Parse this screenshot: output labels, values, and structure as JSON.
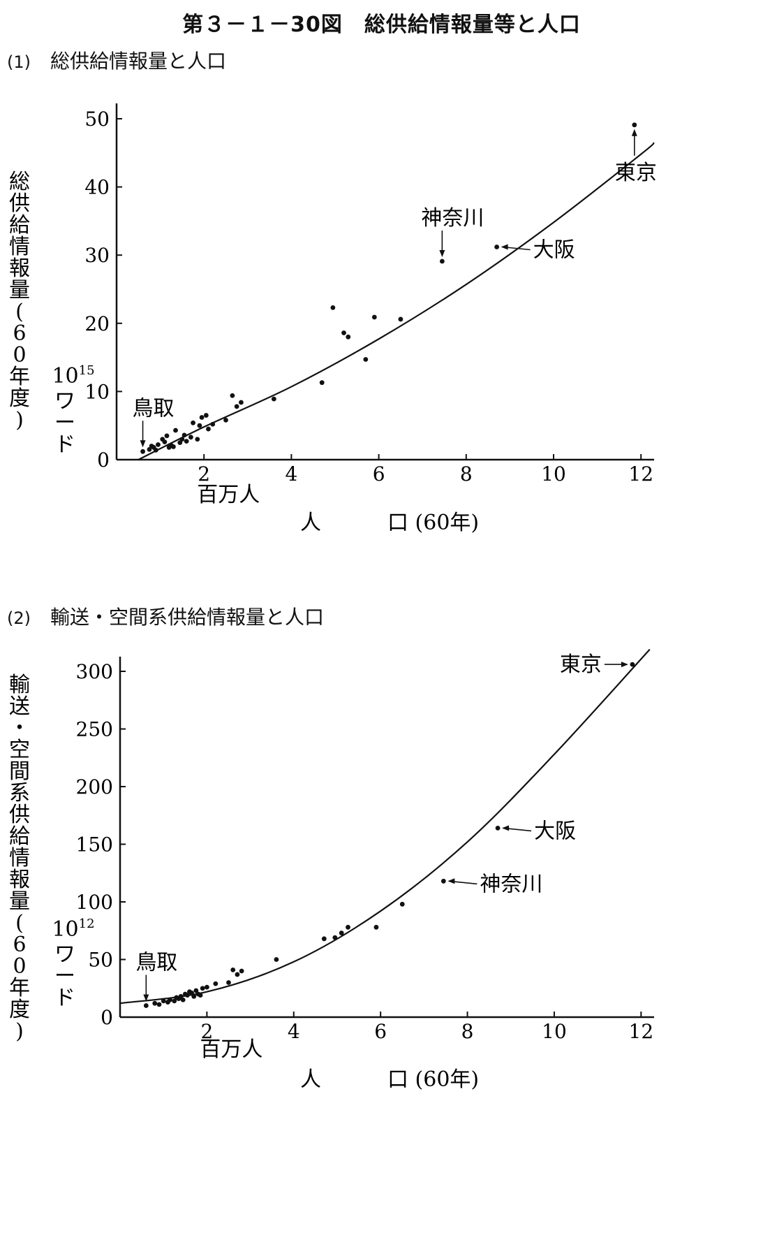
{
  "figure_title": "第３－１－30図　総供給情報量等と人口",
  "chart_data": [
    {
      "type": "scatter",
      "panel_number": "(1)",
      "title": "総供給情報量と人口",
      "ylabel": "総供給情報量(60年度)",
      "yunit_exp": "10",
      "yunit_sup": "15",
      "yunit_word": "ワード",
      "xunit": "百万人",
      "xlabel_a": "人",
      "xlabel_b": "口 (60年)",
      "xlim": [
        0,
        12.3
      ],
      "ylim": [
        0,
        50
      ],
      "xticks": [
        2,
        4,
        6,
        8,
        10,
        12
      ],
      "yticks": [
        0,
        10,
        20,
        30,
        40,
        50
      ],
      "curve": [
        [
          0.5,
          0
        ],
        [
          2,
          4.8
        ],
        [
          4,
          10.7
        ],
        [
          6,
          17.7
        ],
        [
          8,
          25.7
        ],
        [
          10,
          34.8
        ],
        [
          12,
          44.8
        ],
        [
          12.3,
          46.5
        ]
      ],
      "points": [
        [
          0.6,
          1.2
        ],
        [
          0.75,
          1.5
        ],
        [
          0.8,
          2.0
        ],
        [
          0.85,
          1.8
        ],
        [
          0.9,
          1.4
        ],
        [
          0.95,
          2.2
        ],
        [
          1.05,
          3.0
        ],
        [
          1.1,
          2.6
        ],
        [
          1.15,
          3.5
        ],
        [
          1.2,
          1.8
        ],
        [
          1.25,
          2.1
        ],
        [
          1.3,
          1.9
        ],
        [
          1.35,
          4.3
        ],
        [
          1.45,
          2.5
        ],
        [
          1.5,
          3.0
        ],
        [
          1.55,
          3.6
        ],
        [
          1.6,
          2.7
        ],
        [
          1.7,
          3.3
        ],
        [
          1.75,
          5.4
        ],
        [
          1.85,
          3.0
        ],
        [
          1.9,
          5.0
        ],
        [
          1.95,
          6.2
        ],
        [
          2.05,
          6.5
        ],
        [
          2.1,
          4.5
        ],
        [
          2.2,
          5.2
        ],
        [
          2.5,
          5.8
        ],
        [
          2.65,
          9.4
        ],
        [
          2.75,
          7.8
        ],
        [
          2.85,
          8.4
        ],
        [
          3.6,
          8.9
        ],
        [
          4.7,
          11.3
        ],
        [
          4.95,
          22.3
        ],
        [
          5.2,
          18.6
        ],
        [
          5.3,
          18.0
        ],
        [
          5.7,
          14.7
        ],
        [
          5.9,
          20.9
        ],
        [
          6.5,
          20.6
        ],
        [
          7.45,
          29.1
        ],
        [
          8.7,
          31.2
        ],
        [
          11.85,
          49.1
        ]
      ],
      "labels": [
        {
          "text": "鳥取",
          "x": 0.6,
          "y": 1.2,
          "dir": "above"
        },
        {
          "text": "神奈川",
          "x": 7.45,
          "y": 29.1,
          "dir": "above"
        },
        {
          "text": "大阪",
          "x": 8.7,
          "y": 31.2,
          "dir": "right"
        },
        {
          "text": "東京",
          "x": 11.85,
          "y": 49.1,
          "dir": "below"
        }
      ]
    },
    {
      "type": "scatter",
      "panel_number": "(2)",
      "title": "輸送・空間系供給情報量と人口",
      "ylabel": "輸送・空間系供給情報量(60年度)",
      "yunit_exp": "10",
      "yunit_sup": "12",
      "yunit_word": "ワード",
      "xunit": "百万人",
      "xlabel_a": "人",
      "xlabel_b": "口 (60年)",
      "xlim": [
        0,
        12.3
      ],
      "ylim": [
        0,
        320
      ],
      "xticks": [
        2,
        4,
        6,
        8,
        10,
        12
      ],
      "yticks": [
        0,
        50,
        100,
        150,
        200,
        250,
        300
      ],
      "curve": [
        [
          0,
          12
        ],
        [
          2,
          22
        ],
        [
          4,
          48
        ],
        [
          6,
          92
        ],
        [
          8,
          152
        ],
        [
          10,
          228
        ],
        [
          12.2,
          319
        ]
      ],
      "points": [
        [
          0.6,
          10
        ],
        [
          0.8,
          12
        ],
        [
          0.9,
          11
        ],
        [
          1.0,
          14
        ],
        [
          1.1,
          13
        ],
        [
          1.15,
          15
        ],
        [
          1.25,
          14
        ],
        [
          1.3,
          17
        ],
        [
          1.35,
          16
        ],
        [
          1.4,
          18
        ],
        [
          1.45,
          15
        ],
        [
          1.5,
          20
        ],
        [
          1.55,
          19
        ],
        [
          1.6,
          22
        ],
        [
          1.65,
          21
        ],
        [
          1.7,
          18
        ],
        [
          1.75,
          23
        ],
        [
          1.8,
          20
        ],
        [
          1.85,
          19
        ],
        [
          1.9,
          25
        ],
        [
          2.0,
          26
        ],
        [
          2.2,
          29
        ],
        [
          2.5,
          30
        ],
        [
          2.6,
          41
        ],
        [
          2.7,
          37
        ],
        [
          2.8,
          40
        ],
        [
          3.6,
          50
        ],
        [
          4.7,
          68
        ],
        [
          4.95,
          69
        ],
        [
          5.1,
          73
        ],
        [
          5.25,
          78
        ],
        [
          5.9,
          78
        ],
        [
          6.5,
          98
        ],
        [
          7.45,
          118
        ],
        [
          8.7,
          164
        ],
        [
          11.8,
          306
        ]
      ],
      "labels": [
        {
          "text": "鳥取",
          "x": 0.6,
          "y": 10,
          "dir": "above"
        },
        {
          "text": "神奈川",
          "x": 7.45,
          "y": 118,
          "dir": "right"
        },
        {
          "text": "大阪",
          "x": 8.7,
          "y": 164,
          "dir": "right"
        },
        {
          "text": "東京",
          "x": 11.8,
          "y": 306,
          "dir": "left"
        }
      ]
    }
  ]
}
